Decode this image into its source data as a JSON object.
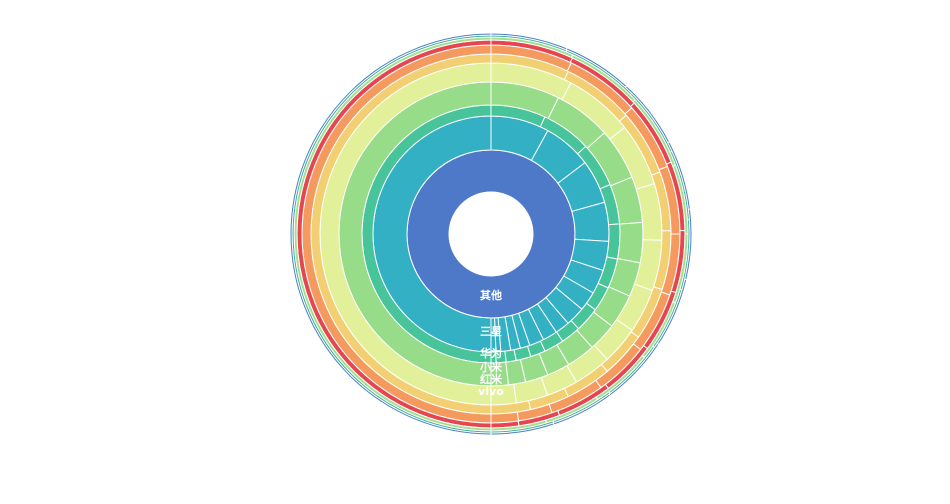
{
  "chart_data": {
    "type": "sunburst",
    "title": "",
    "level_colors": [
      "#4e79c9",
      "#33b0c3",
      "#48c49b",
      "#96dc89",
      "#e3f09a",
      "#f1cf72",
      "#f59a5f",
      "#e6464f",
      "#a1de8f",
      "#41ae98",
      "#4a7fc8"
    ],
    "levels": [
      {
        "level": 1,
        "label": "其他",
        "slices": [
          {
            "name": "其他",
            "value": 100
          }
        ]
      },
      {
        "level": 2,
        "label": "三星",
        "slices": [
          {
            "name": "三星",
            "value": 25
          },
          {
            "name": "",
            "value": 12
          },
          {
            "name": "",
            "value": 10
          },
          {
            "name": "",
            "value": 9
          },
          {
            "name": "",
            "value": 8
          },
          {
            "name": "",
            "value": 6
          },
          {
            "name": "",
            "value": 5
          },
          {
            "name": "",
            "value": 4
          },
          {
            "name": "",
            "value": 4
          },
          {
            "name": "",
            "value": 3
          },
          {
            "name": "",
            "value": 3
          },
          {
            "name": "",
            "value": 3
          },
          {
            "name": "",
            "value": 2
          },
          {
            "name": "",
            "value": 2
          },
          {
            "name": "",
            "value": 2
          },
          {
            "name": "",
            "value": 1
          },
          {
            "name": "",
            "value": 1
          }
        ]
      },
      {
        "level": 3,
        "label": "华为",
        "slices": [
          {
            "name": "华为",
            "value": 20
          },
          {
            "name": "",
            "value": 11
          },
          {
            "name": "",
            "value": 10
          },
          {
            "name": "",
            "value": 9
          },
          {
            "name": "",
            "value": 8
          },
          {
            "name": "",
            "value": 7
          },
          {
            "name": "",
            "value": 6
          },
          {
            "name": "",
            "value": 5
          },
          {
            "name": "",
            "value": 5
          },
          {
            "name": "",
            "value": 4
          },
          {
            "name": "",
            "value": 4
          },
          {
            "name": "",
            "value": 3
          },
          {
            "name": "",
            "value": 3
          },
          {
            "name": "",
            "value": 2
          },
          {
            "name": "",
            "value": 2
          },
          {
            "name": "",
            "value": 1
          }
        ]
      },
      {
        "level": 4,
        "label": "小米",
        "slices": [
          {
            "name": "小米",
            "value": 18
          },
          {
            "name": "",
            "value": 12
          },
          {
            "name": "",
            "value": 10
          },
          {
            "name": "",
            "value": 9
          },
          {
            "name": "",
            "value": 8
          },
          {
            "name": "",
            "value": 7
          },
          {
            "name": "",
            "value": 6
          },
          {
            "name": "",
            "value": 6
          },
          {
            "name": "",
            "value": 5
          },
          {
            "name": "",
            "value": 5
          },
          {
            "name": "",
            "value": 4
          },
          {
            "name": "",
            "value": 4
          },
          {
            "name": "",
            "value": 3
          },
          {
            "name": "",
            "value": 3
          }
        ]
      },
      {
        "level": 5,
        "label": "红米",
        "slices": [
          {
            "name": "红米",
            "value": 16
          },
          {
            "name": "",
            "value": 13
          },
          {
            "name": "",
            "value": 11
          },
          {
            "name": "",
            "value": 10
          },
          {
            "name": "",
            "value": 9
          },
          {
            "name": "",
            "value": 8
          },
          {
            "name": "",
            "value": 7
          },
          {
            "name": "",
            "value": 6
          },
          {
            "name": "",
            "value": 6
          },
          {
            "name": "",
            "value": 5
          },
          {
            "name": "",
            "value": 5
          },
          {
            "name": "",
            "value": 4
          }
        ]
      },
      {
        "level": 6,
        "label": "vivo",
        "slices": [
          {
            "name": "vivo",
            "value": 15
          },
          {
            "name": "",
            "value": 12
          },
          {
            "name": "",
            "value": 11
          },
          {
            "name": "",
            "value": 10
          },
          {
            "name": "",
            "value": 9
          },
          {
            "name": "",
            "value": 9
          },
          {
            "name": "",
            "value": 8
          },
          {
            "name": "",
            "value": 7
          },
          {
            "name": "",
            "value": 7
          },
          {
            "name": "",
            "value": 6
          },
          {
            "name": "",
            "value": 6
          }
        ]
      },
      {
        "level": 7,
        "label": "",
        "slices": [
          {
            "name": "",
            "value": 14
          },
          {
            "name": "",
            "value": 12
          },
          {
            "name": "",
            "value": 11
          },
          {
            "name": "",
            "value": 10
          },
          {
            "name": "",
            "value": 10
          },
          {
            "name": "",
            "value": 9
          },
          {
            "name": "",
            "value": 9
          },
          {
            "name": "",
            "value": 8
          },
          {
            "name": "",
            "value": 8
          },
          {
            "name": "",
            "value": 5
          },
          {
            "name": "",
            "value": 4
          }
        ]
      },
      {
        "level": 8,
        "label": "",
        "slices": [
          {
            "name": "",
            "value": 13
          },
          {
            "name": "",
            "value": 12
          },
          {
            "name": "",
            "value": 11
          },
          {
            "name": "",
            "value": 10
          },
          {
            "name": "",
            "value": 10
          },
          {
            "name": "",
            "value": 9
          },
          {
            "name": "",
            "value": 9
          },
          {
            "name": "",
            "value": 8
          },
          {
            "name": "",
            "value": 8
          },
          {
            "name": "",
            "value": 6
          },
          {
            "name": "",
            "value": 4
          }
        ]
      },
      {
        "level": 9,
        "label": "",
        "slices": [
          {
            "name": "",
            "value": 12
          },
          {
            "name": "",
            "value": 12
          },
          {
            "name": "",
            "value": 11
          },
          {
            "name": "",
            "value": 11
          },
          {
            "name": "",
            "value": 10
          },
          {
            "name": "",
            "value": 10
          },
          {
            "name": "",
            "value": 9
          },
          {
            "name": "",
            "value": 9
          },
          {
            "name": "",
            "value": 8
          },
          {
            "name": "",
            "value": 8
          }
        ]
      },
      {
        "level": 10,
        "label": "",
        "slices": [
          {
            "name": "",
            "value": 12
          },
          {
            "name": "",
            "value": 11
          },
          {
            "name": "",
            "value": 11
          },
          {
            "name": "",
            "value": 10
          },
          {
            "name": "",
            "value": 10
          },
          {
            "name": "",
            "value": 10
          },
          {
            "name": "",
            "value": 9
          },
          {
            "name": "",
            "value": 9
          },
          {
            "name": "",
            "value": 9
          },
          {
            "name": "",
            "value": 9
          }
        ]
      },
      {
        "level": 11,
        "label": "",
        "slices": [
          {
            "name": "",
            "value": 11
          },
          {
            "name": "",
            "value": 11
          },
          {
            "name": "",
            "value": 10
          },
          {
            "name": "",
            "value": 10
          },
          {
            "name": "",
            "value": 10
          },
          {
            "name": "",
            "value": 10
          },
          {
            "name": "",
            "value": 10
          },
          {
            "name": "",
            "value": 10
          },
          {
            "name": "",
            "value": 9
          },
          {
            "name": "",
            "value": 9
          }
        ]
      }
    ]
  }
}
